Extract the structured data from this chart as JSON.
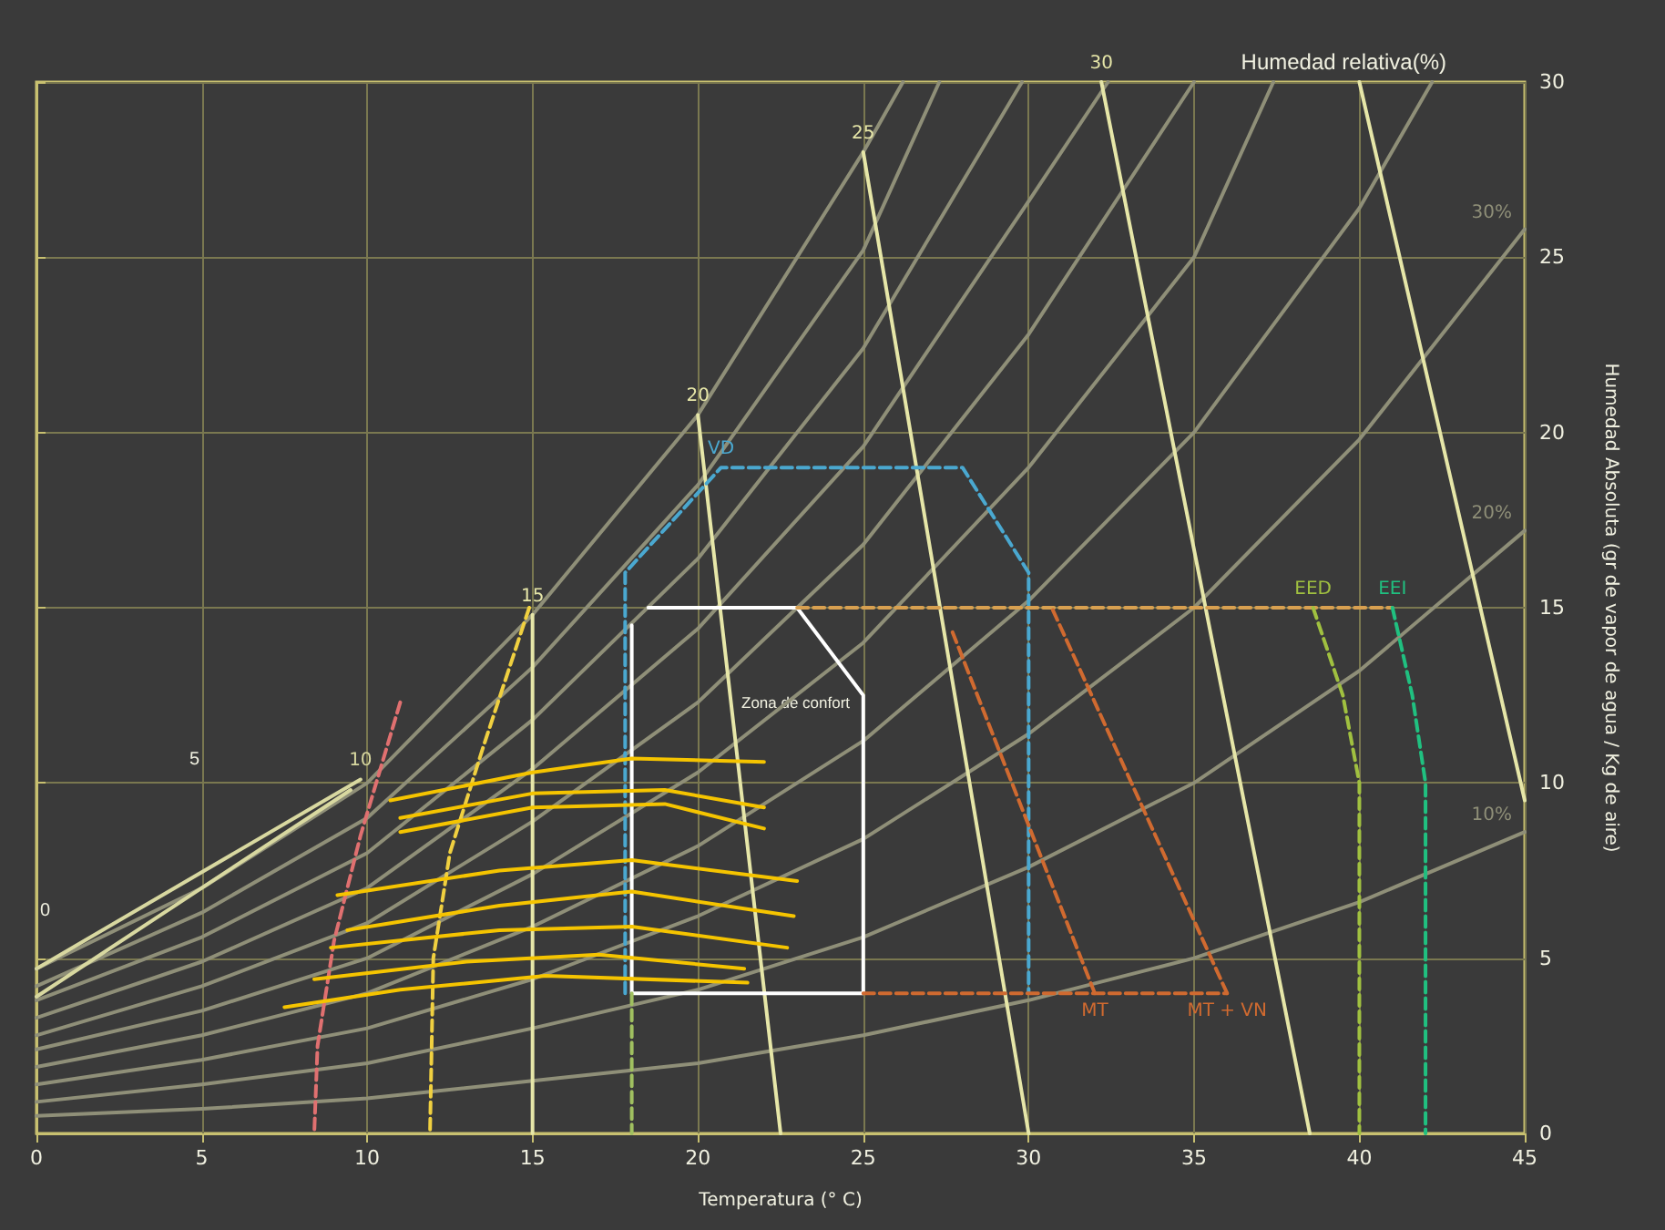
{
  "chart_data": {
    "type": "line",
    "xlabel": "Temperatura (° C)",
    "ylabel": "Humedad Absoluta (gr de vapor de agua / Kg de aire)",
    "xlim": [
      0,
      45
    ],
    "xticks": [
      0,
      5,
      10,
      15,
      20,
      25,
      30,
      35,
      40,
      45
    ],
    "ylim": [
      0,
      30
    ],
    "yticks": [
      0,
      5,
      10,
      15,
      20,
      25,
      30
    ],
    "grid": true,
    "marker": "none",
    "annotations": [
      "Humedad relativa(%)",
      "0",
      "5",
      "Zona de confort"
    ],
    "series": [
      {
        "name": "10%",
        "color": "#8f8f78",
        "x": [
          45,
          40,
          35,
          30,
          25,
          20,
          15,
          10,
          5,
          0
        ],
        "values": [
          8.6,
          6.6,
          5,
          3.8,
          2.8,
          2,
          1.5,
          1,
          0.7,
          0.5
        ]
      },
      {
        "name": "20%",
        "color": "#8f8f78",
        "x": [
          45,
          40,
          35,
          30,
          25,
          20,
          15,
          10,
          5,
          0
        ],
        "values": [
          17.2,
          13.2,
          10,
          7.6,
          5.6,
          4.1,
          3,
          2,
          1.4,
          0.9
        ]
      },
      {
        "name": "30%",
        "color": "#8f8f78",
        "x": [
          45,
          40,
          35,
          30,
          25,
          20,
          15,
          10,
          5,
          0
        ],
        "values": [
          25.8,
          19.8,
          15,
          11.4,
          8.4,
          6.2,
          4.4,
          3,
          2.1,
          1.4
        ]
      },
      {
        "color": "#8f8f78",
        "x": [
          0,
          5,
          10,
          15,
          20,
          25,
          30,
          35,
          40,
          42.2
        ],
        "values": [
          1.9,
          2.8,
          4,
          5.9,
          8.2,
          11.2,
          15.2,
          20,
          26.4,
          30
        ]
      },
      {
        "color": "#8f8f78",
        "x": [
          0,
          5,
          10,
          15,
          20,
          25,
          30,
          35,
          37.4
        ],
        "values": [
          2.4,
          3.5,
          5,
          7.4,
          10.3,
          14,
          19,
          25,
          30
        ]
      },
      {
        "color": "#8f8f78",
        "x": [
          0,
          5,
          10,
          15,
          20,
          25,
          30,
          35
        ],
        "values": [
          2.8,
          4.2,
          6,
          8.9,
          12.3,
          16.8,
          22.8,
          30
        ]
      },
      {
        "color": "#8f8f78",
        "x": [
          0,
          5,
          10,
          15,
          20,
          25,
          30,
          32.4
        ],
        "values": [
          3.3,
          4.9,
          7,
          10.4,
          14.4,
          19.6,
          26.6,
          30
        ]
      },
      {
        "color": "#8f8f78",
        "x": [
          0,
          5,
          10,
          15,
          20,
          25,
          29.8
        ],
        "values": [
          3.8,
          5.6,
          8,
          11.8,
          16.4,
          22.4,
          30
        ]
      },
      {
        "color": "#8f8f78",
        "x": [
          0,
          5,
          10,
          15,
          20,
          25,
          27.3
        ],
        "values": [
          4.2,
          6.3,
          9,
          13.3,
          18.5,
          25.2,
          30
        ]
      },
      {
        "color": "#8f8f78",
        "x": [
          0,
          5,
          10,
          15,
          20,
          25,
          26.2
        ],
        "values": [
          4.7,
          7,
          10,
          14.8,
          20.5,
          28,
          30
        ]
      },
      {
        "name": "10",
        "color": "#d8d8a0",
        "x": [
          9.8,
          0
        ],
        "values": [
          10.1,
          4.7
        ]
      },
      {
        "color": "#d8d8a0",
        "x": [
          0,
          9.5
        ],
        "values": [
          3.9,
          9.8
        ]
      },
      {
        "name": "15",
        "color": "#e6e6a8",
        "x": [
          15,
          15
        ],
        "values": [
          14.8,
          0
        ]
      },
      {
        "name": "20",
        "color": "#e6e6a8",
        "x": [
          20,
          22.5
        ],
        "values": [
          20.5,
          0
        ]
      },
      {
        "name": "25",
        "color": "#e6e6a8",
        "x": [
          25,
          30
        ],
        "values": [
          28,
          0
        ]
      },
      {
        "name": "30",
        "color": "#e6e6a8",
        "x": [
          32.2,
          38.5
        ],
        "values": [
          30,
          0
        ]
      },
      {
        "color": "#e6e6a8",
        "x": [
          40,
          45
        ],
        "values": [
          30,
          9.5
        ]
      },
      {
        "color": "#ffffff",
        "x": [
          18.5,
          23,
          25,
          25,
          18,
          18
        ],
        "values": [
          15,
          15,
          12.5,
          4,
          4,
          14.5
        ]
      },
      {
        "name": "VD",
        "color": "#4aa8d0",
        "line_style": "dashed",
        "x": [
          17.8,
          17.8,
          20.7,
          28,
          30,
          30
        ],
        "values": [
          4,
          16,
          19,
          19,
          16,
          4
        ]
      },
      {
        "color": "#d8a050",
        "line_style": "dashed",
        "x": [
          23,
          41
        ],
        "values": [
          15,
          15
        ]
      },
      {
        "color": "#d06a30",
        "line_style": "dashed",
        "x": [
          25,
          36
        ],
        "values": [
          4,
          4
        ]
      },
      {
        "name": "MT",
        "color": "#d06a30",
        "line_style": "dashed",
        "x": [
          32,
          27.7
        ],
        "values": [
          4,
          14.3
        ]
      },
      {
        "name": "MT + VN",
        "color": "#d06a30",
        "line_style": "dashed",
        "x": [
          36,
          30.7
        ],
        "values": [
          4,
          15
        ]
      },
      {
        "name": "EED",
        "color": "#a0c040",
        "line_style": "dashed",
        "x": [
          38.6,
          39.5,
          40,
          40
        ],
        "values": [
          15,
          12.5,
          10,
          0
        ]
      },
      {
        "name": "EEI",
        "color": "#20c080",
        "line_style": "dashed",
        "x": [
          41,
          41.6,
          42,
          42
        ],
        "values": [
          15,
          12.5,
          10,
          0
        ]
      },
      {
        "color": "#e07070",
        "line_style": "dashed",
        "x": [
          11,
          9.8,
          9,
          8.5,
          8.4
        ],
        "values": [
          12.3,
          8.5,
          5.5,
          2.5,
          0
        ]
      },
      {
        "color": "#f0d040",
        "line_style": "dashed",
        "x": [
          14.9,
          13.5,
          12.5,
          12,
          11.9
        ],
        "values": [
          15,
          11,
          8,
          5,
          0
        ]
      },
      {
        "color": "#a0c060",
        "line_style": "dashed",
        "x": [
          18,
          18
        ],
        "values": [
          4,
          0
        ]
      },
      {
        "color": "#f5c400",
        "x": [
          10.7,
          15,
          18,
          22
        ],
        "values": [
          9.5,
          10.3,
          10.7,
          10.6
        ]
      },
      {
        "color": "#f5c400",
        "x": [
          11,
          15,
          19,
          22
        ],
        "values": [
          9,
          9.7,
          9.8,
          9.3
        ]
      },
      {
        "color": "#f5c400",
        "x": [
          11,
          15,
          19,
          22
        ],
        "values": [
          8.6,
          9.3,
          9.4,
          8.7
        ]
      },
      {
        "color": "#f5c400",
        "x": [
          9.1,
          14,
          18,
          23
        ],
        "values": [
          6.8,
          7.5,
          7.8,
          7.2
        ]
      },
      {
        "color": "#f5c400",
        "x": [
          9.4,
          14,
          18,
          22.9
        ],
        "values": [
          5.8,
          6.5,
          6.9,
          6.2
        ]
      },
      {
        "color": "#f5c400",
        "x": [
          8.9,
          14,
          18,
          22.7
        ],
        "values": [
          5.3,
          5.8,
          5.9,
          5.3
        ]
      },
      {
        "color": "#f5c400",
        "x": [
          8.4,
          13,
          17,
          21.4
        ],
        "values": [
          4.4,
          4.9,
          5.1,
          4.7
        ]
      },
      {
        "color": "#f5c400",
        "x": [
          7.5,
          11,
          15.4,
          21.5
        ],
        "values": [
          3.6,
          4.1,
          4.5,
          4.3
        ]
      }
    ]
  }
}
